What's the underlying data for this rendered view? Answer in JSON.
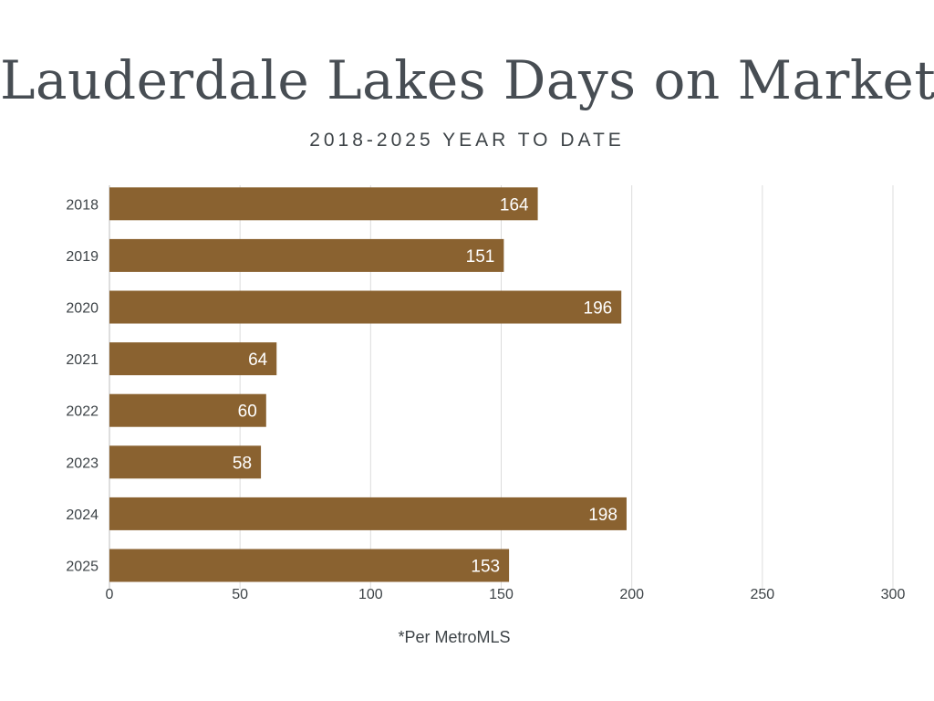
{
  "chart_data": {
    "type": "bar",
    "orientation": "horizontal",
    "title": "Lauderdale Lakes Days on Market",
    "subtitle": "2018-2025 YEAR TO DATE",
    "categories": [
      "2018",
      "2019",
      "2020",
      "2021",
      "2022",
      "2023",
      "2024",
      "2025"
    ],
    "values": [
      164,
      151,
      196,
      64,
      60,
      58,
      198,
      153
    ],
    "data_labels": [
      "164",
      "151",
      "196",
      "64",
      "60",
      "58",
      "198",
      "153"
    ],
    "xlim": [
      0,
      300
    ],
    "x_ticks": [
      "0",
      "50",
      "100",
      "150",
      "200",
      "250",
      "300"
    ],
    "grid": "vertical",
    "bar_color": "#8a6230",
    "grid_color": "#dcdcdc",
    "label_color": "#ffffff",
    "footnote": "*Per MetroMLS"
  }
}
